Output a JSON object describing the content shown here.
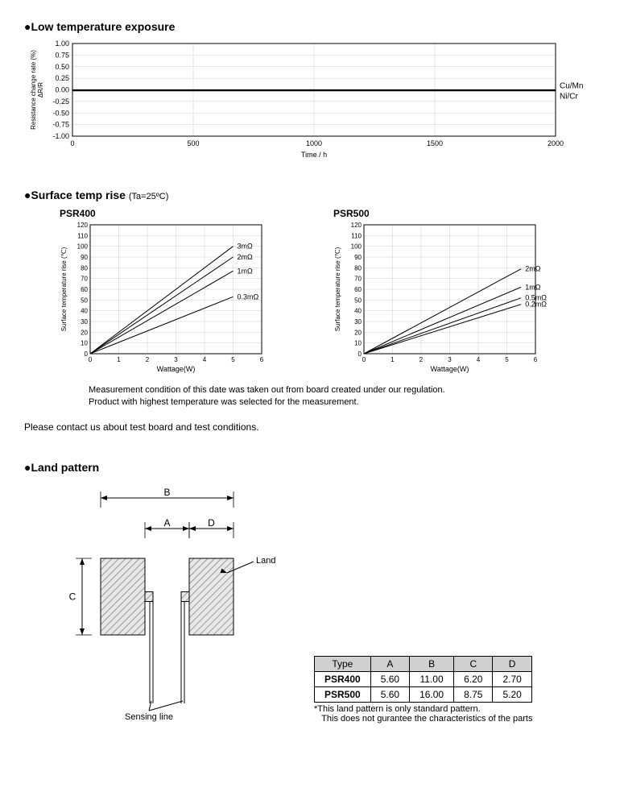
{
  "chart1": {
    "title": "●Low temperature exposure",
    "type": "line",
    "xlabel": "Time / h",
    "ylabel": "Resistance change rate (%)\nΔR/R",
    "xlim": [
      0,
      2000
    ],
    "ylim": [
      -1.0,
      1.0
    ],
    "xticks": [
      0,
      500,
      1000,
      1500,
      2000
    ],
    "yticks": [
      -1.0,
      -0.75,
      -0.5,
      -0.25,
      0.0,
      0.25,
      0.5,
      0.75,
      1.0
    ],
    "series": [
      {
        "label": "Cu/Mn",
        "color": "#000000",
        "data": [
          [
            0,
            0
          ],
          [
            2000,
            0
          ]
        ]
      },
      {
        "label": "Ni/Cr",
        "color": "#000000",
        "data": [
          [
            0,
            -0.02
          ],
          [
            2000,
            -0.02
          ]
        ]
      }
    ],
    "grid_color": "#cccccc",
    "axis_color": "#000000",
    "background": "#ffffff",
    "label_fontsize": 9
  },
  "chart2_title": "●Surface temp rise",
  "chart2_note": "(Ta=25ºC)",
  "chart2a": {
    "subtitle": "PSR400",
    "type": "line",
    "xlabel": "Wattage(W)",
    "ylabel": "Surface temperature rise (℃)",
    "xlim": [
      0,
      6
    ],
    "ylim": [
      0,
      120
    ],
    "xticks": [
      0,
      1,
      2,
      3,
      4,
      5,
      6
    ],
    "yticks": [
      0,
      10,
      20,
      30,
      40,
      50,
      60,
      70,
      80,
      90,
      100,
      110,
      120
    ],
    "series": [
      {
        "label": "3mΩ",
        "data": [
          [
            0,
            0
          ],
          [
            5,
            100
          ]
        ]
      },
      {
        "label": "2mΩ",
        "data": [
          [
            0,
            0
          ],
          [
            5,
            90
          ]
        ]
      },
      {
        "label": "1mΩ",
        "data": [
          [
            0,
            0
          ],
          [
            5,
            77
          ]
        ]
      },
      {
        "label": "0.3mΩ",
        "data": [
          [
            0,
            0
          ],
          [
            5,
            53
          ]
        ]
      }
    ]
  },
  "chart2b": {
    "subtitle": "PSR500",
    "type": "line",
    "xlabel": "Wattage(W)",
    "ylabel": "Surface temperature rise (℃)",
    "xlim": [
      0,
      6
    ],
    "ylim": [
      0,
      120
    ],
    "xticks": [
      0,
      1,
      2,
      3,
      4,
      5,
      6
    ],
    "yticks": [
      0,
      10,
      20,
      30,
      40,
      50,
      60,
      70,
      80,
      90,
      100,
      110,
      120
    ],
    "series": [
      {
        "label": "2mΩ",
        "data": [
          [
            0,
            0
          ],
          [
            5.5,
            79
          ]
        ]
      },
      {
        "label": "1mΩ",
        "data": [
          [
            0,
            0
          ],
          [
            5.5,
            62
          ]
        ]
      },
      {
        "label": "0.5mΩ",
        "data": [
          [
            0,
            0
          ],
          [
            5.5,
            52
          ]
        ]
      },
      {
        "label": "0.2mΩ",
        "data": [
          [
            0,
            0
          ],
          [
            5.5,
            46
          ]
        ]
      }
    ]
  },
  "measurement_notes": {
    "line1": "Measurement condition of this date was taken out from board created under our regulation.",
    "line2": "Product with highest temperature was selected for the measurement."
  },
  "contact_text": "Please contact us about test board and test conditions.",
  "land_pattern": {
    "title": "●Land pattern",
    "labels": {
      "A": "A",
      "B": "B",
      "C": "C",
      "D": "D",
      "land": "Land",
      "sensing": "Sensing line"
    },
    "table": {
      "header": [
        "Type",
        "A",
        "B",
        "C",
        "D"
      ],
      "rows": [
        [
          "PSR400",
          "5.60",
          "11.00",
          "6.20",
          "2.70"
        ],
        [
          "PSR500",
          "5.60",
          "16.00",
          "8.75",
          "5.20"
        ]
      ]
    },
    "table_notes": {
      "line1": "*This land pattern is only standard pattern.",
      "line2": "This does not gurantee the characteristics of the parts"
    },
    "colors": {
      "hatch": "#999999",
      "stroke": "#000000"
    }
  }
}
